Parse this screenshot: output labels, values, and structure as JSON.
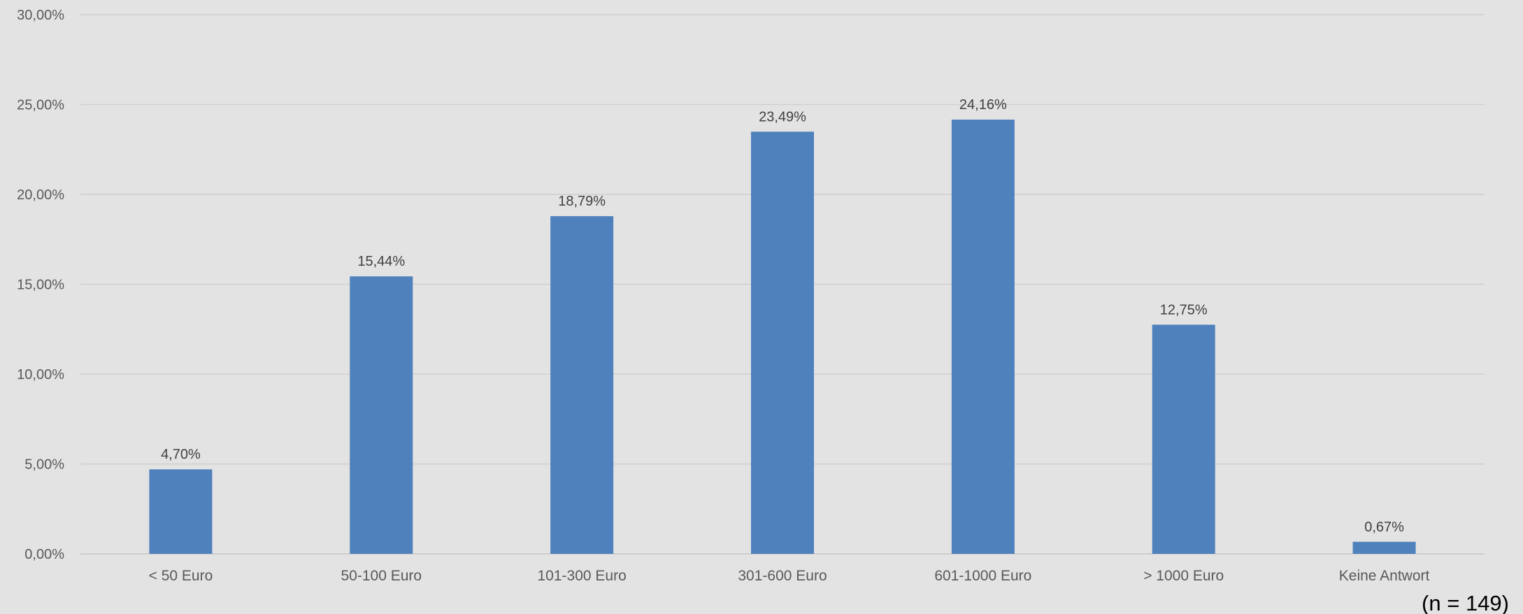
{
  "chart_data": {
    "type": "bar",
    "title": "",
    "xlabel": "",
    "ylabel": "",
    "categories": [
      "< 50 Euro",
      "50-100 Euro",
      "101-300 Euro",
      "301-600 Euro",
      "601-1000 Euro",
      "> 1000 Euro",
      "Keine Antwort"
    ],
    "values": [
      4.7,
      15.44,
      18.79,
      23.49,
      24.16,
      12.75,
      0.67
    ],
    "data_labels": [
      "4,70%",
      "15,44%",
      "18,79%",
      "23,49%",
      "24,16%",
      "12,75%",
      "0,67%"
    ],
    "ylim": [
      0,
      30
    ],
    "yticks": [
      0,
      5,
      10,
      15,
      20,
      25,
      30
    ],
    "ytick_labels": [
      "0,00%",
      "5,00%",
      "10,00%",
      "15,00%",
      "20,00%",
      "25,00%",
      "30,00%"
    ],
    "grid": true,
    "legend": "none",
    "bar_color": "#4f81bd",
    "note": "(n = 149)"
  }
}
